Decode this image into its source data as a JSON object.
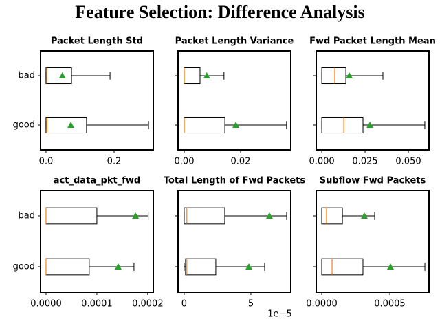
{
  "title": "Feature Selection: Difference Analysis",
  "chart_data": [
    {
      "type": "boxplot",
      "title": "Packet Length Std",
      "categories": [
        "good",
        "bad"
      ],
      "category_labels_visible": true,
      "stats": [
        {
          "min": 0,
          "q1": 0,
          "median": 0.003,
          "q3": 0.119,
          "max": 0.301,
          "mean": 0.073
        },
        {
          "min": 0,
          "q1": 0,
          "median": 0.002,
          "q3": 0.075,
          "max": 0.188,
          "mean": 0.048
        }
      ],
      "median_color": "#ff7f0e",
      "mean_color": "#2ca02c",
      "xlim": [
        -0.016,
        0.315
      ],
      "xticks": [
        {
          "value": 0,
          "label": "0.0"
        },
        {
          "value": 0.2,
          "label": "0.2"
        }
      ]
    },
    {
      "type": "boxplot",
      "title": "Packet Length Variance",
      "categories": [
        "good",
        "bad"
      ],
      "category_labels_visible": false,
      "stats": [
        {
          "min": 0,
          "q1": 0,
          "median": 0,
          "q3": 0.0144,
          "max": 0.0363,
          "mean": 0.0183
        },
        {
          "min": 0,
          "q1": 0,
          "median": 0,
          "q3": 0.0056,
          "max": 0.0141,
          "mean": 0.008
        }
      ],
      "median_color": "#ff7f0e",
      "mean_color": "#2ca02c",
      "xlim": [
        -0.0022,
        0.0378
      ],
      "xticks": [
        {
          "value": 0,
          "label": "0.00"
        },
        {
          "value": 0.02,
          "label": "0.02"
        }
      ]
    },
    {
      "type": "boxplot",
      "title": "Fwd Packet Length Mean",
      "categories": [
        "good",
        "bad"
      ],
      "category_labels_visible": false,
      "stats": [
        {
          "min": 0,
          "q1": 0,
          "median": 0.0127,
          "q3": 0.0238,
          "max": 0.0595,
          "mean": 0.0278
        },
        {
          "min": 0,
          "q1": 0,
          "median": 0.0075,
          "q3": 0.0139,
          "max": 0.0353,
          "mean": 0.0159
        }
      ],
      "median_color": "#ff7f0e",
      "mean_color": "#2ca02c",
      "xlim": [
        -0.0032,
        0.0619
      ],
      "xticks": [
        {
          "value": 0,
          "label": "0.000"
        },
        {
          "value": 0.025,
          "label": "0.025"
        },
        {
          "value": 0.05,
          "label": "0.050"
        }
      ]
    },
    {
      "type": "boxplot",
      "title": "act_data_pkt_fwd",
      "categories": [
        "good",
        "bad"
      ],
      "category_labels_visible": true,
      "stats": [
        {
          "min": 0,
          "q1": 0,
          "median": 0,
          "q3": 8.5e-05,
          "max": 0.000173,
          "mean": 0.000142
        },
        {
          "min": 0,
          "q1": 0,
          "median": 0,
          "q3": 0.0001,
          "max": 0.000201,
          "mean": 0.000176
        }
      ],
      "median_color": "#ff7f0e",
      "mean_color": "#2ca02c",
      "xlim": [
        -1.08e-05,
        0.000211
      ],
      "xticks": [
        {
          "value": 0,
          "label": "0.0000"
        },
        {
          "value": 0.0001,
          "label": "0.0001"
        },
        {
          "value": 0.0002,
          "label": "0.0002"
        }
      ]
    },
    {
      "type": "boxplot",
      "title": "Total Length of Fwd Packets",
      "categories": [
        "good",
        "bad"
      ],
      "category_labels_visible": false,
      "stats": [
        {
          "min": 0,
          "q1": 1e-06,
          "median": 2e-06,
          "q3": 2.37e-05,
          "max": 6.03e-05,
          "mean": 4.85e-05
        },
        {
          "min": 0,
          "q1": 0,
          "median": 2e-06,
          "q3": 3.04e-05,
          "max": 7.68e-05,
          "mean": 6.39e-05
        }
      ],
      "median_color": "#ff7f0e",
      "mean_color": "#2ca02c",
      "xlim": [
        -4.6e-06,
        7.99e-05
      ],
      "xticks": [
        0,
        {
          "value": 5e-05,
          "label": "5"
        }
      ],
      "x_offset_label": "1e−5"
    },
    {
      "type": "boxplot",
      "title": "Subflow Fwd Packets",
      "categories": [
        "good",
        "bad"
      ],
      "category_labels_visible": false,
      "stats": [
        {
          "min": 0,
          "q1": 0,
          "median": 7.6e-05,
          "q3": 0.000303,
          "max": 0.000758,
          "mean": 0.000505
        },
        {
          "min": 0,
          "q1": 0,
          "median": 3.5e-05,
          "q3": 0.000152,
          "max": 0.000389,
          "mean": 0.000313
        }
      ],
      "median_color": "#ff7f0e",
      "mean_color": "#2ca02c",
      "xlim": [
        -4.04e-05,
        0.000788
      ],
      "xticks": [
        {
          "value": 0,
          "label": "0.0000"
        },
        {
          "value": 0.0005,
          "label": "0.0005"
        }
      ]
    }
  ]
}
